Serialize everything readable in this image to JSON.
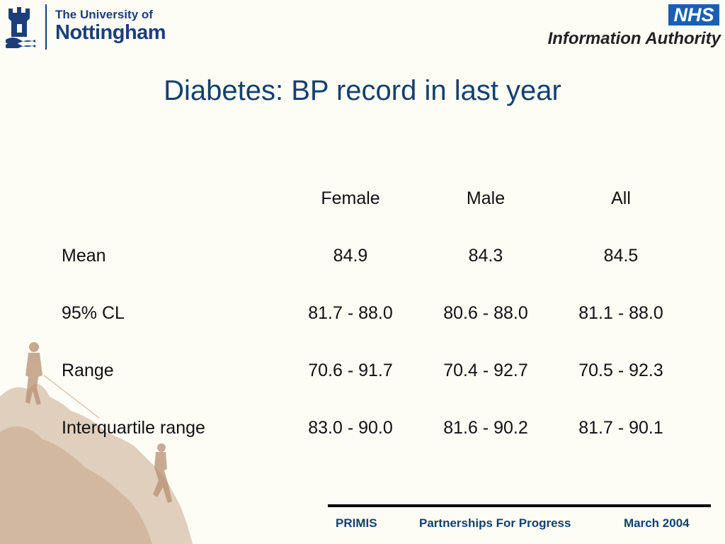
{
  "header": {
    "uon_line1": "The University of",
    "uon_line2": "Nottingham",
    "nhs_badge": "NHS",
    "nhs_authority": "Information Authority"
  },
  "slide": {
    "title": "Diabetes: BP record in last year"
  },
  "table": {
    "columns": [
      "Female",
      "Male",
      "All"
    ],
    "rows": [
      {
        "label": "Mean",
        "values": [
          "84.9",
          "84.3",
          "84.5"
        ]
      },
      {
        "label": "95% CL",
        "values": [
          "81.7 - 88.0",
          "80.6 - 88.0",
          "81.1 - 88.0"
        ]
      },
      {
        "label": "Range",
        "values": [
          "70.6 - 91.7",
          "70.4 - 92.7",
          "70.5 - 92.3"
        ]
      },
      {
        "label": "Interquartile range",
        "values": [
          "83.0 - 90.0",
          "81.6 - 90.2",
          "81.7 - 90.1"
        ]
      }
    ]
  },
  "footer": {
    "left": "PRIMIS",
    "center": "Partnerships For Progress",
    "right": "March 2004"
  },
  "colors": {
    "title": "#14406e",
    "nhs_blue": "#1b5fb0",
    "uon_blue": "#1c3f7a",
    "background": "#fdfcf5"
  }
}
